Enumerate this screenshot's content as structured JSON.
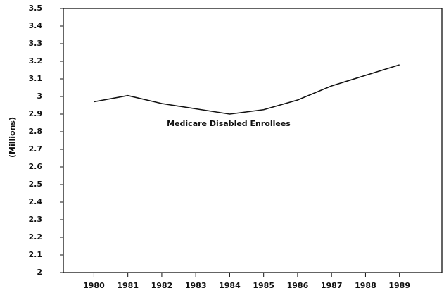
{
  "chart_data": {
    "type": "line",
    "y_label": "(Millions)",
    "x": [
      1980,
      1981,
      1982,
      1983,
      1984,
      1985,
      1986,
      1987,
      1988,
      1989
    ],
    "series": [
      {
        "name": "Medicare Disabled Enrollees",
        "color": "#111111",
        "values": [
          2.97,
          3.005,
          2.96,
          2.93,
          2.9,
          2.925,
          2.98,
          3.06,
          3.12,
          3.18
        ]
      }
    ],
    "xlim": [
      1979.1,
      1990.25
    ],
    "xticks": [
      1980,
      1981,
      1982,
      1983,
      1984,
      1985,
      1986,
      1987,
      1988,
      1989
    ],
    "ylim": [
      2,
      3.5
    ],
    "yticks": [
      2,
      2.1,
      2.2,
      2.3,
      2.4,
      2.5,
      2.6,
      2.7,
      2.8,
      2.9,
      3,
      3.1,
      3.2,
      3.3,
      3.4,
      3.5
    ],
    "grid": false
  }
}
